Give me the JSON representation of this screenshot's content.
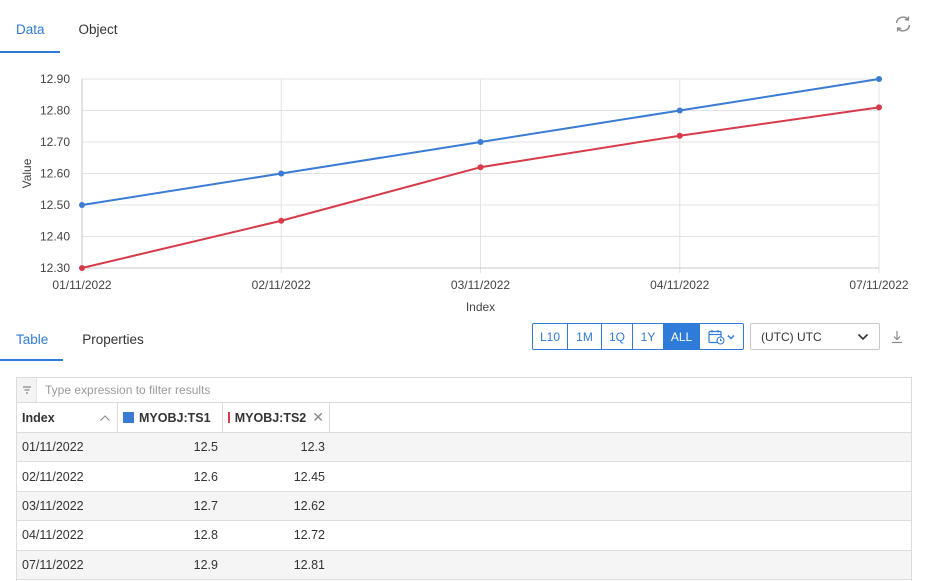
{
  "top_tabs": [
    {
      "label": "Data",
      "active": true
    },
    {
      "label": "Object",
      "active": false
    }
  ],
  "bottom_tabs": [
    {
      "label": "Table",
      "active": true
    },
    {
      "label": "Properties",
      "active": false
    }
  ],
  "range_buttons": [
    {
      "label": "L10",
      "active": false
    },
    {
      "label": "1M",
      "active": false
    },
    {
      "label": "1Q",
      "active": false
    },
    {
      "label": "1Y",
      "active": false
    },
    {
      "label": "ALL",
      "active": true
    }
  ],
  "timezone": {
    "value": "(UTC) UTC"
  },
  "filter": {
    "placeholder": "Type expression to filter results"
  },
  "table": {
    "columns": [
      {
        "label": "Index"
      },
      {
        "label": "MYOBJ:TS1",
        "color": "#3a7bd5"
      },
      {
        "label": "MYOBJ:TS2",
        "color": "#d83a4a"
      }
    ],
    "rows": [
      [
        "01/11/2022",
        "12.5",
        "12.3"
      ],
      [
        "02/11/2022",
        "12.6",
        "12.45"
      ],
      [
        "03/11/2022",
        "12.7",
        "12.62"
      ],
      [
        "04/11/2022",
        "12.8",
        "12.72"
      ],
      [
        "07/11/2022",
        "12.9",
        "12.81"
      ]
    ]
  },
  "chart_data": {
    "type": "line",
    "x": [
      "01/11/2022",
      "02/11/2022",
      "03/11/2022",
      "04/11/2022",
      "07/11/2022"
    ],
    "series": [
      {
        "name": "MYOBJ:TS1",
        "color": "#3a7bd5",
        "values": [
          12.5,
          12.6,
          12.7,
          12.8,
          12.9
        ]
      },
      {
        "name": "MYOBJ:TS2",
        "color": "#d83a4a",
        "values": [
          12.3,
          12.45,
          12.62,
          12.72,
          12.81
        ]
      }
    ],
    "xlabel": "Index",
    "ylabel": "Value",
    "ylim": [
      12.3,
      12.9
    ],
    "yticks": [
      "12.30",
      "12.40",
      "12.50",
      "12.60",
      "12.70",
      "12.80",
      "12.90"
    ],
    "grid": true,
    "legend": "none"
  }
}
